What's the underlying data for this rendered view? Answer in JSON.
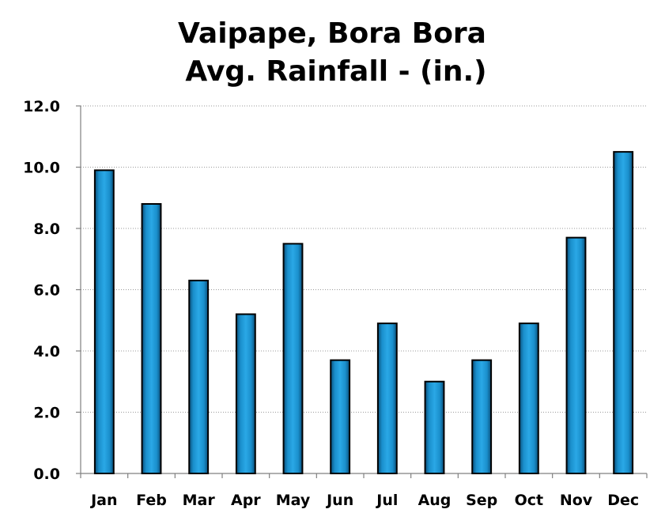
{
  "chart_data": {
    "type": "bar",
    "title_lines": [
      "Vaipape, Bora Bora",
      "Avg. Rainfall - (in.)"
    ],
    "categories": [
      "Jan",
      "Feb",
      "Mar",
      "Apr",
      "May",
      "Jun",
      "Jul",
      "Aug",
      "Sep",
      "Oct",
      "Nov",
      "Dec"
    ],
    "values": [
      9.9,
      8.8,
      6.3,
      5.2,
      7.5,
      3.7,
      4.9,
      3.0,
      3.7,
      4.9,
      7.7,
      10.5
    ],
    "ylim": [
      0,
      12
    ],
    "yticks": [
      0,
      2,
      4,
      6,
      8,
      10,
      12
    ],
    "ytick_labels": [
      "0.0",
      "2.0",
      "4.0",
      "6.0",
      "8.0",
      "10.0",
      "12.0"
    ],
    "grid": true,
    "bar_color": "#1a8fcc"
  }
}
